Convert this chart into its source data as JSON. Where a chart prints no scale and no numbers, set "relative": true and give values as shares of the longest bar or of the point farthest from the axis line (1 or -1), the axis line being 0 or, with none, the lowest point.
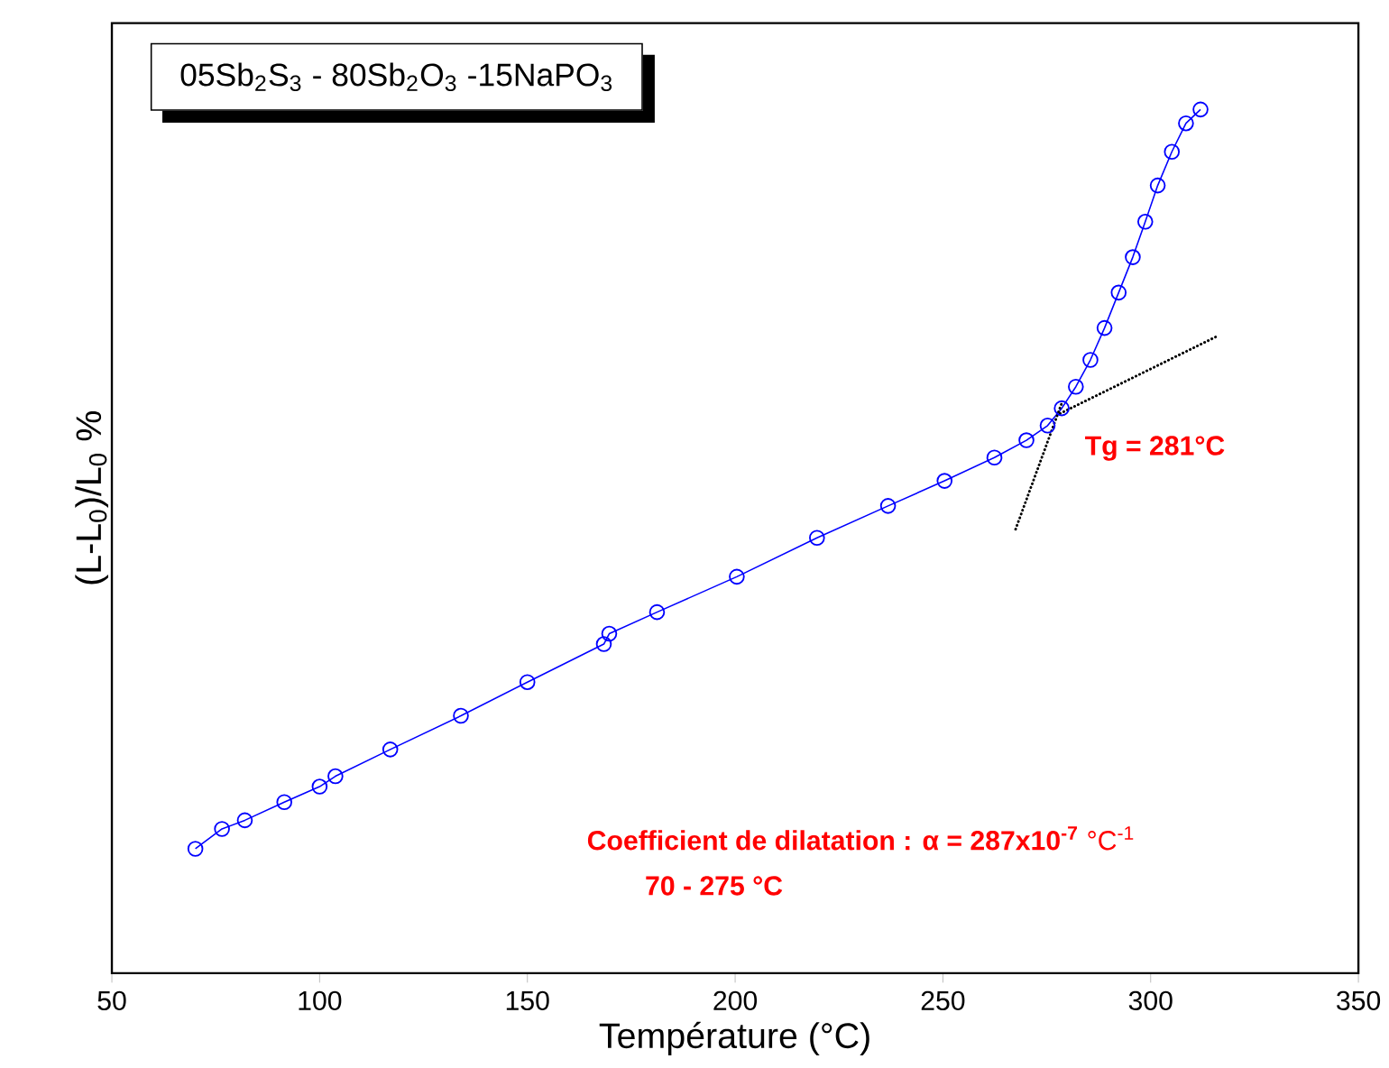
{
  "chart_data": {
    "type": "line",
    "title": "05Sb$_{2}$S$_{3}$ - 80Sb$_{2}$O$_{3}$ -15NaPO$_{3}$",
    "xlabel": "Température (°C)",
    "ylabel": "(L-L$_{0}$)/L$_{0}$ %",
    "relative": true,
    "marker": "circle",
    "xlim": [
      50,
      350
    ],
    "xticks": [
      50,
      100,
      150,
      200,
      250,
      300,
      350
    ],
    "series": [
      {
        "color": "#0000ff",
        "x": [
          70.1,
          76.5,
          82,
          91.5,
          100,
          103.8,
          117,
          134,
          150,
          168.4,
          169.7,
          181.2,
          200.4,
          219.7,
          236.8,
          250.4,
          262.4,
          270.1,
          275.2,
          278.6,
          282,
          285.5,
          288.9,
          292.3,
          295.7,
          298.7,
          301.7,
          305.1,
          308.5,
          312
        ],
        "values": [
          0.144,
          0.167,
          0.177,
          0.198,
          0.216,
          0.228,
          0.259,
          0.298,
          0.337,
          0.381,
          0.393,
          0.418,
          0.459,
          0.504,
          0.541,
          0.57,
          0.597,
          0.617,
          0.634,
          0.654,
          0.679,
          0.71,
          0.747,
          0.788,
          0.829,
          0.87,
          0.912,
          0.951,
          0.984,
          1.0
        ]
      },
      {
        "color": "#000000",
        "marker": "none",
        "line_style": "dotted",
        "x": [
          267.5,
          278.6
        ],
        "values": [
          0.514,
          0.66
        ]
      },
      {
        "color": "#000000",
        "marker": "none",
        "line_style": "dotted",
        "x": [
          278.2,
          315.8
        ],
        "values": [
          0.648,
          0.737
        ]
      }
    ],
    "annotations": [
      {
        "text": "Tg = 281°C",
        "x": 281,
        "y": 0.67
      },
      "**Coefficient de dilatation : α = 287x10$^{-7}$** °C$^{-1}$",
      "**70 - 275 °C**"
    ]
  }
}
